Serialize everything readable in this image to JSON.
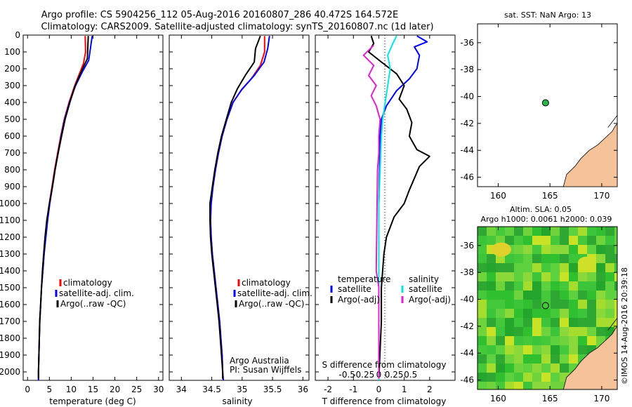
{
  "header": {
    "title_line1": "Argo profile: CS 5904256_112 05-Aug-2016 20160807_286 40.472S 164.572E",
    "title_line2": "Climatology: CARS2009. Satellite-adjusted climatology: synTS_20160807.nc (1d later)"
  },
  "colors": {
    "climatology": "#ff0000",
    "satellite": "#0000ff",
    "argo": "#000000",
    "satellite_diff": "#00e5e5",
    "argo_diff": "#e020d0",
    "land": "#f5c29a",
    "station_marker": "#2ab64a"
  },
  "chart_data": [
    {
      "type": "line",
      "panel": "temperature",
      "xlabel": "temperature (deg C)",
      "xlim": [
        -1,
        31
      ],
      "xticks": [
        0,
        5,
        10,
        15,
        20,
        25,
        30
      ],
      "ylim": [
        2050,
        0
      ],
      "yticks": [
        0,
        100,
        200,
        300,
        400,
        500,
        600,
        700,
        800,
        900,
        1000,
        1100,
        1200,
        1300,
        1400,
        1500,
        1600,
        1700,
        1800,
        1900,
        2000
      ],
      "legend": [
        "climatology",
        "satellite-adj. clim.",
        "Argo(..raw -QC)"
      ],
      "series": [
        {
          "name": "climatology",
          "color": "#ff0000",
          "points": [
            [
              13.2,
              5
            ],
            [
              13.3,
              100
            ],
            [
              12.8,
              170
            ],
            [
              10.8,
              300
            ],
            [
              9.5,
              400
            ],
            [
              8.4,
              500
            ],
            [
              7.6,
              600
            ],
            [
              6.9,
              700
            ],
            [
              6.2,
              800
            ],
            [
              5.6,
              900
            ],
            [
              5.0,
              1000
            ],
            [
              4.5,
              1100
            ],
            [
              4.1,
              1200
            ],
            [
              3.8,
              1300
            ],
            [
              3.5,
              1400
            ],
            [
              3.2,
              1500
            ],
            [
              3.0,
              1600
            ],
            [
              2.8,
              1700
            ],
            [
              2.7,
              1800
            ],
            [
              2.6,
              1900
            ],
            [
              2.5,
              2000
            ],
            [
              2.5,
              2050
            ]
          ]
        },
        {
          "name": "satellite-adj. clim.",
          "color": "#0000ff",
          "points": [
            [
              14.8,
              5
            ],
            [
              14.5,
              60
            ],
            [
              14.0,
              150
            ],
            [
              12.5,
              220
            ],
            [
              11.0,
              300
            ],
            [
              9.6,
              400
            ],
            [
              8.5,
              500
            ],
            [
              7.7,
              600
            ],
            [
              7.0,
              700
            ],
            [
              6.3,
              800
            ],
            [
              5.7,
              900
            ],
            [
              5.1,
              1000
            ],
            [
              4.6,
              1100
            ],
            [
              4.2,
              1200
            ],
            [
              3.8,
              1300
            ],
            [
              3.5,
              1400
            ],
            [
              3.2,
              1500
            ],
            [
              3.0,
              1600
            ],
            [
              2.8,
              1700
            ],
            [
              2.7,
              1800
            ],
            [
              2.6,
              1900
            ],
            [
              2.5,
              2000
            ],
            [
              2.5,
              2050
            ]
          ]
        },
        {
          "name": "Argo(..raw -QC)",
          "color": "#000000",
          "points": [
            [
              13.9,
              5
            ],
            [
              13.8,
              80
            ],
            [
              13.7,
              140
            ],
            [
              12.6,
              200
            ],
            [
              10.9,
              300
            ],
            [
              9.7,
              400
            ],
            [
              8.6,
              500
            ],
            [
              7.8,
              600
            ],
            [
              7.0,
              700
            ],
            [
              6.3,
              800
            ],
            [
              5.7,
              900
            ],
            [
              5.0,
              1000
            ],
            [
              4.4,
              1100
            ],
            [
              4.0,
              1200
            ],
            [
              3.7,
              1300
            ],
            [
              3.4,
              1400
            ],
            [
              3.2,
              1500
            ],
            [
              3.0,
              1600
            ],
            [
              2.8,
              1700
            ],
            [
              2.7,
              1800
            ],
            [
              2.6,
              1900
            ],
            [
              2.5,
              2000
            ],
            [
              2.5,
              2040
            ]
          ]
        }
      ]
    },
    {
      "type": "line",
      "panel": "salinity",
      "xlabel": "salinity",
      "xlim": [
        33.8,
        36.1
      ],
      "xticks": [
        34,
        34.5,
        35,
        35.5,
        36
      ],
      "xticklabels": [
        "34",
        "34.5",
        "35",
        "35.5",
        "36"
      ],
      "ylim": [
        2050,
        0
      ],
      "legend": [
        "climatology",
        "satellite-adj. clim.",
        "Argo(..raw -QC)"
      ],
      "annotation": [
        "Argo Australia",
        "PI: Susan Wijffels"
      ],
      "series": [
        {
          "name": "climatology",
          "color": "#ff0000",
          "points": [
            [
              35.37,
              5
            ],
            [
              35.37,
              100
            ],
            [
              35.3,
              180
            ],
            [
              35.15,
              260
            ],
            [
              34.98,
              330
            ],
            [
              34.85,
              400
            ],
            [
              34.75,
              500
            ],
            [
              34.67,
              600
            ],
            [
              34.61,
              700
            ],
            [
              34.56,
              800
            ],
            [
              34.52,
              900
            ],
            [
              34.49,
              1000
            ],
            [
              34.48,
              1100
            ],
            [
              34.49,
              1200
            ],
            [
              34.51,
              1300
            ],
            [
              34.54,
              1400
            ],
            [
              34.57,
              1500
            ],
            [
              34.6,
              1600
            ],
            [
              34.63,
              1700
            ],
            [
              34.65,
              1800
            ],
            [
              34.67,
              1900
            ],
            [
              34.68,
              2000
            ],
            [
              34.69,
              2050
            ]
          ]
        },
        {
          "name": "satellite-adj. clim.",
          "color": "#0000ff",
          "points": [
            [
              35.45,
              5
            ],
            [
              35.42,
              80
            ],
            [
              35.36,
              160
            ],
            [
              35.2,
              240
            ],
            [
              35.0,
              320
            ],
            [
              34.85,
              400
            ],
            [
              34.75,
              500
            ],
            [
              34.67,
              600
            ],
            [
              34.61,
              700
            ],
            [
              34.56,
              800
            ],
            [
              34.52,
              900
            ],
            [
              34.49,
              1000
            ],
            [
              34.48,
              1100
            ],
            [
              34.49,
              1200
            ],
            [
              34.51,
              1300
            ],
            [
              34.54,
              1400
            ],
            [
              34.57,
              1500
            ],
            [
              34.6,
              1600
            ],
            [
              34.63,
              1700
            ],
            [
              34.65,
              1800
            ],
            [
              34.67,
              1900
            ],
            [
              34.68,
              2000
            ],
            [
              34.69,
              2050
            ]
          ]
        },
        {
          "name": "Argo(..raw -QC)",
          "color": "#000000",
          "points": [
            [
              35.3,
              5
            ],
            [
              35.22,
              80
            ],
            [
              35.2,
              160
            ],
            [
              35.05,
              240
            ],
            [
              34.92,
              320
            ],
            [
              34.82,
              400
            ],
            [
              34.74,
              500
            ],
            [
              34.66,
              600
            ],
            [
              34.6,
              700
            ],
            [
              34.55,
              800
            ],
            [
              34.51,
              900
            ],
            [
              34.47,
              1000
            ],
            [
              34.47,
              1100
            ],
            [
              34.48,
              1200
            ],
            [
              34.5,
              1300
            ],
            [
              34.53,
              1400
            ],
            [
              34.56,
              1500
            ],
            [
              34.59,
              1600
            ],
            [
              34.62,
              1700
            ],
            [
              34.64,
              1800
            ],
            [
              34.66,
              1900
            ],
            [
              34.68,
              2000
            ],
            [
              34.68,
              2040
            ]
          ]
        }
      ]
    },
    {
      "type": "line",
      "panel": "difference",
      "xlabel": "T difference from climatology",
      "top_axis_label": "S difference from climatology",
      "xlim": [
        -2.5,
        3
      ],
      "xticks": [
        -2,
        -1,
        0,
        1,
        2
      ],
      "top_ticks": [
        "-0.5",
        "-0.25",
        "0",
        "0.25",
        "0.5"
      ],
      "ylim": [
        2050,
        0
      ],
      "legend_temperature": {
        "title": "temperature",
        "items": [
          "satellite",
          "Argo(-adj)"
        ]
      },
      "legend_salinity": {
        "title": "salinity",
        "items": [
          "satellite",
          "Argo(-adj)"
        ]
      },
      "series": [
        {
          "name": "temperature satellite",
          "color": "#0000ff",
          "points": [
            [
              1.5,
              5
            ],
            [
              1.9,
              40
            ],
            [
              1.4,
              70
            ],
            [
              1.6,
              120
            ],
            [
              1.5,
              200
            ],
            [
              1.2,
              260
            ],
            [
              0.7,
              330
            ],
            [
              0.3,
              420
            ],
            [
              0.1,
              500
            ],
            [
              0.05,
              600
            ],
            [
              0.03,
              800
            ],
            [
              0.0,
              1000
            ],
            [
              0.0,
              1500
            ],
            [
              0.0,
              2050
            ]
          ]
        },
        {
          "name": "temperature Argo(-adj)",
          "color": "#000000",
          "points": [
            [
              -0.3,
              5
            ],
            [
              -0.2,
              50
            ],
            [
              -0.4,
              100
            ],
            [
              0.1,
              160
            ],
            [
              0.7,
              230
            ],
            [
              1.0,
              300
            ],
            [
              0.8,
              380
            ],
            [
              1.1,
              440
            ],
            [
              1.3,
              520
            ],
            [
              1.2,
              600
            ],
            [
              1.5,
              680
            ],
            [
              2.0,
              720
            ],
            [
              1.6,
              780
            ],
            [
              1.4,
              850
            ],
            [
              1.2,
              920
            ],
            [
              1.0,
              1000
            ],
            [
              0.6,
              1080
            ],
            [
              0.3,
              1200
            ],
            [
              0.2,
              1300
            ],
            [
              0.1,
              1500
            ],
            [
              0.1,
              1700
            ],
            [
              0.0,
              2040
            ]
          ]
        },
        {
          "name": "salinity satellite",
          "color": "#00e5e5",
          "points": [
            [
              0.7,
              5
            ],
            [
              0.55,
              50
            ],
            [
              0.35,
              120
            ],
            [
              0.45,
              200
            ],
            [
              0.35,
              300
            ],
            [
              0.25,
              400
            ],
            [
              0.15,
              500
            ],
            [
              0.1,
              600
            ],
            [
              0.05,
              800
            ],
            [
              0.0,
              1000
            ],
            [
              0.0,
              1300
            ],
            [
              0.0,
              2050
            ]
          ]
        },
        {
          "name": "salinity Argo(-adj)",
          "color": "#e020d0",
          "points": [
            [
              -0.2,
              60
            ],
            [
              -0.6,
              120
            ],
            [
              -0.2,
              180
            ],
            [
              -0.4,
              240
            ],
            [
              -0.1,
              300
            ],
            [
              -0.3,
              360
            ],
            [
              -0.1,
              420
            ],
            [
              0.05,
              500
            ],
            [
              0.0,
              600
            ],
            [
              0.0,
              700
            ],
            [
              -0.05,
              800
            ],
            [
              -0.1,
              1400
            ],
            [
              0.0,
              1500
            ],
            [
              0.0,
              2040
            ]
          ]
        }
      ]
    }
  ],
  "map_top": {
    "title": "sat. SST: NaN Argo: 13",
    "xticks": [
      "160",
      "165",
      "170"
    ],
    "yticks": [
      "-36",
      "-38",
      "-40",
      "-42",
      "-44",
      "-46"
    ],
    "lon_range": [
      158,
      171.5
    ],
    "lat_range": [
      -46.7,
      -34.6
    ],
    "station": {
      "lon": 164.57,
      "lat": -40.47
    }
  },
  "map_bottom": {
    "title_line1": "Altim. SLA: 0.05",
    "title_line2": "Argo h1000: 0.0061 h2000: 0.039",
    "xticks": [
      "160",
      "165",
      "170"
    ],
    "yticks": [
      "-36",
      "-38",
      "-40",
      "-42",
      "-44",
      "-46"
    ],
    "lon_range": [
      158,
      171.5
    ],
    "lat_range": [
      -46.7,
      -34.6
    ],
    "station": {
      "lon": 164.57,
      "lat": -40.47
    }
  },
  "credit": "©IMOS 14-Aug-2016 20:39:18"
}
